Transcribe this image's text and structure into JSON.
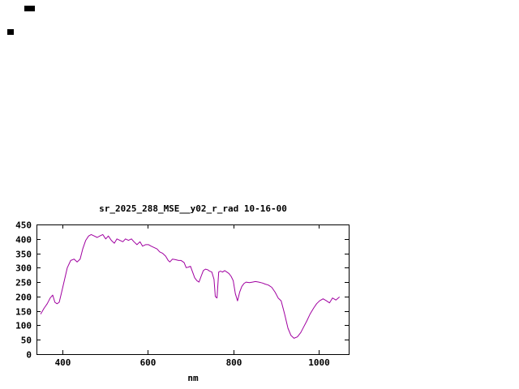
{
  "canvas": {
    "background": "#ffffff"
  },
  "chart_data": {
    "type": "line",
    "title": "sr_2025_288_MSE__y02_r_rad 10-16-00",
    "xlabel": "nm",
    "ylabel": "",
    "xlim": [
      340,
      1070
    ],
    "ylim": [
      0,
      450
    ],
    "xticks": [
      400,
      600,
      800,
      1000
    ],
    "yticks": [
      0,
      50,
      100,
      150,
      200,
      250,
      300,
      350,
      400,
      450
    ],
    "grid": false,
    "legend": "none",
    "line_color": "#a000a0",
    "frame_color": "#000000",
    "series": [
      {
        "name": "sr_2025_288_MSE__y02_r_rad",
        "x": [
          350,
          358,
          365,
          372,
          378,
          383,
          388,
          393,
          398,
          405,
          412,
          420,
          428,
          435,
          442,
          448,
          455,
          462,
          468,
          475,
          482,
          488,
          495,
          502,
          508,
          515,
          522,
          528,
          535,
          542,
          548,
          555,
          562,
          568,
          575,
          582,
          588,
          595,
          602,
          608,
          615,
          622,
          628,
          635,
          642,
          648,
          652,
          658,
          665,
          672,
          678,
          685,
          690,
          695,
          700,
          705,
          710,
          715,
          720,
          725,
          730,
          735,
          740,
          745,
          750,
          755,
          758,
          762,
          766,
          770,
          775,
          780,
          785,
          790,
          795,
          800,
          805,
          810,
          815,
          820,
          825,
          830,
          838,
          845,
          852,
          860,
          868,
          875,
          882,
          890,
          898,
          905,
          912,
          920,
          928,
          935,
          942,
          950,
          958,
          965,
          972,
          980,
          988,
          995,
          1002,
          1010,
          1018,
          1025,
          1032,
          1040,
          1048
        ],
        "y": [
          140,
          160,
          175,
          195,
          205,
          180,
          175,
          180,
          210,
          255,
          300,
          325,
          330,
          320,
          330,
          365,
          395,
          410,
          415,
          410,
          405,
          410,
          415,
          400,
          410,
          395,
          385,
          400,
          395,
          390,
          400,
          395,
          400,
          390,
          380,
          390,
          375,
          380,
          380,
          375,
          370,
          365,
          355,
          350,
          340,
          325,
          320,
          330,
          328,
          325,
          325,
          318,
          300,
          302,
          305,
          285,
          265,
          255,
          250,
          270,
          290,
          295,
          293,
          288,
          285,
          260,
          200,
          195,
          285,
          288,
          285,
          290,
          285,
          280,
          270,
          255,
          210,
          185,
          215,
          235,
          245,
          250,
          248,
          250,
          252,
          250,
          247,
          243,
          240,
          232,
          215,
          195,
          185,
          140,
          90,
          65,
          55,
          60,
          75,
          95,
          115,
          140,
          160,
          175,
          185,
          192,
          185,
          178,
          195,
          188,
          198
        ]
      }
    ]
  }
}
